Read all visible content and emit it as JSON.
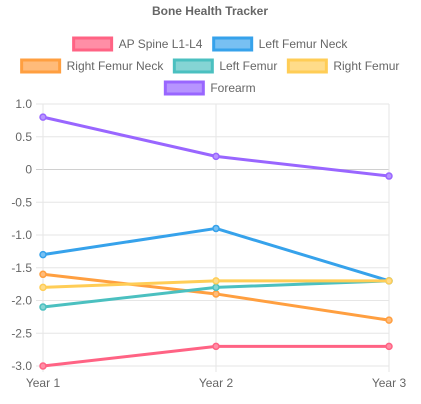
{
  "chart_data": {
    "type": "line",
    "title": "Bone Health Tracker",
    "categories": [
      "Year 1",
      "Year 2",
      "Year 3"
    ],
    "ylim": [
      -3.0,
      1.0
    ],
    "y_ticks": [
      "1.0",
      "0.5",
      "0",
      "-0.5",
      "-1.0",
      "-1.5",
      "-2.0",
      "-2.5",
      "-3.0"
    ],
    "grid": true,
    "legend_position": "top",
    "series": [
      {
        "name": "AP Spine L1-L4",
        "values": [
          -3.0,
          -2.7,
          -2.7
        ],
        "color": "#ff6384",
        "fill": "#ff8ea6"
      },
      {
        "name": "Left Femur Neck",
        "values": [
          -1.3,
          -0.9,
          -1.7
        ],
        "color": "#36a2eb",
        "fill": "#78c0f2"
      },
      {
        "name": "Right Femur Neck",
        "values": [
          -1.6,
          -1.9,
          -2.3
        ],
        "color": "#ff9f40",
        "fill": "#ffbb7a"
      },
      {
        "name": "Left Femur",
        "values": [
          -2.1,
          -1.8,
          -1.7
        ],
        "color": "#4bc0c0",
        "fill": "#85d4d4"
      },
      {
        "name": "Right Femur",
        "values": [
          -1.8,
          -1.7,
          -1.7
        ],
        "color": "#ffcd56",
        "fill": "#ffdc8a"
      },
      {
        "name": "Forearm",
        "values": [
          0.8,
          0.2,
          -0.1
        ],
        "color": "#9966ff",
        "fill": "#b794ff"
      }
    ]
  }
}
